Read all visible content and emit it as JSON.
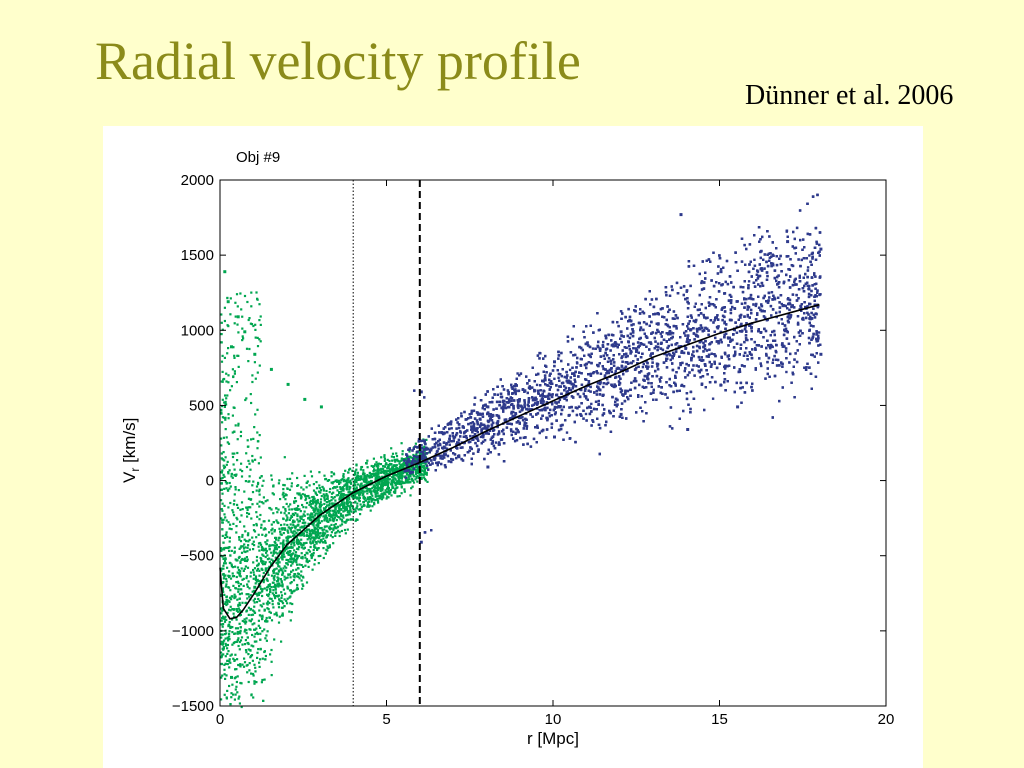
{
  "slide": {
    "title": "Radial velocity profile",
    "citation": "Dünner et al. 2006",
    "background": "#ffffcc",
    "title_color": "#8b8b1a"
  },
  "chart_data": {
    "type": "scatter",
    "panel_label": "Obj #9",
    "xlabel": "r [Mpc]",
    "ylabel_main": "V",
    "ylabel_sub": "r",
    "ylabel_rest": " [km/s]",
    "xlim": [
      0,
      20
    ],
    "ylim": [
      -1500,
      2000
    ],
    "x_ticks": [
      0,
      5,
      10,
      15,
      20
    ],
    "y_ticks": [
      -1500,
      -1000,
      -500,
      0,
      500,
      1000,
      1500,
      2000
    ],
    "x_tick_labels": [
      "0",
      "5",
      "10",
      "15",
      "20"
    ],
    "y_tick_labels": [
      "−1500",
      "−1000",
      "−500",
      "0",
      "500",
      "1000",
      "1500",
      "2000"
    ],
    "grid": false,
    "vertical_lines": [
      {
        "x": 4.0,
        "style": "dotted"
      },
      {
        "x": 6.0,
        "style": "dashed"
      }
    ],
    "series": [
      {
        "color": "#00a650",
        "x_range": [
          0,
          6.2
        ],
        "points": [
          {
            "x": 0.1,
            "y": 1400
          },
          {
            "x": 0.2,
            "y": 1200
          },
          {
            "x": 0.3,
            "y": 900
          },
          {
            "x": 0.5,
            "y": 1100
          },
          {
            "x": 0.7,
            "y": 1000
          },
          {
            "x": 1.0,
            "y": 850
          },
          {
            "x": 1.5,
            "y": 750
          },
          {
            "x": 2.0,
            "y": 650
          },
          {
            "x": 2.5,
            "y": 550
          },
          {
            "x": 3.0,
            "y": 500
          },
          {
            "x": 0.3,
            "y": -1300
          },
          {
            "x": 0.5,
            "y": -1000
          },
          {
            "x": 1.0,
            "y": -700
          },
          {
            "x": 2.0,
            "y": -400
          },
          {
            "x": 3.0,
            "y": -200
          },
          {
            "x": 4.0,
            "y": -50
          },
          {
            "x": 5.0,
            "y": 50
          },
          {
            "x": 6.0,
            "y": 100
          }
        ]
      },
      {
        "color": "#2e3a8c",
        "x_range": [
          5.5,
          18
        ],
        "points": [
          {
            "x": 6.0,
            "y": 600
          },
          {
            "x": 6.0,
            "y": -400
          },
          {
            "x": 8.0,
            "y": 500
          },
          {
            "x": 10.0,
            "y": 800
          },
          {
            "x": 12.0,
            "y": 1000
          },
          {
            "x": 13.8,
            "y": 1780
          },
          {
            "x": 15.0,
            "y": 1400
          },
          {
            "x": 17.0,
            "y": 1600
          },
          {
            "x": 18.0,
            "y": 1550
          },
          {
            "x": 8.0,
            "y": 100
          },
          {
            "x": 10.0,
            "y": 300
          },
          {
            "x": 12.0,
            "y": 450
          },
          {
            "x": 14.0,
            "y": 350
          },
          {
            "x": 15.5,
            "y": 500
          },
          {
            "x": 18.0,
            "y": 850
          }
        ]
      }
    ],
    "mean_profile": {
      "color": "#000000",
      "x": [
        0.0,
        0.1,
        0.3,
        0.5,
        0.7,
        1.0,
        1.5,
        2.0,
        3.0,
        4.0,
        5.0,
        6.0,
        7.0,
        8.0,
        9.0,
        10.0,
        11.0,
        12.0,
        13.0,
        14.0,
        15.0,
        16.0,
        17.0,
        18.0
      ],
      "y": [
        -580,
        -850,
        -920,
        -910,
        -860,
        -760,
        -580,
        -430,
        -230,
        -80,
        30,
        120,
        220,
        330,
        430,
        530,
        630,
        720,
        820,
        900,
        980,
        1050,
        1110,
        1170
      ]
    }
  }
}
